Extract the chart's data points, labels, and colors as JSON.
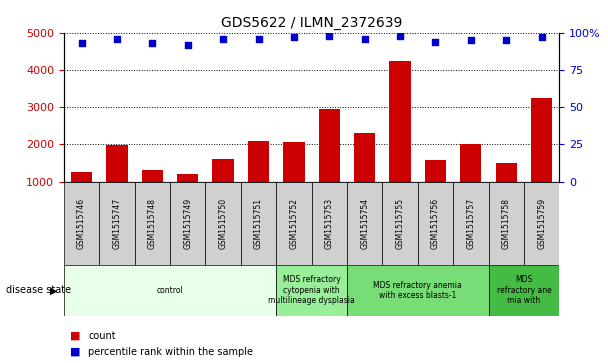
{
  "title": "GDS5622 / ILMN_2372639",
  "samples": [
    "GSM1515746",
    "GSM1515747",
    "GSM1515748",
    "GSM1515749",
    "GSM1515750",
    "GSM1515751",
    "GSM1515752",
    "GSM1515753",
    "GSM1515754",
    "GSM1515755",
    "GSM1515756",
    "GSM1515757",
    "GSM1515758",
    "GSM1515759"
  ],
  "counts": [
    1250,
    1980,
    1320,
    1190,
    1600,
    2100,
    2070,
    2950,
    2300,
    4250,
    1590,
    2020,
    1490,
    3250
  ],
  "percentiles": [
    93,
    96,
    93,
    92,
    96,
    96,
    97,
    98,
    96,
    98,
    94,
    95,
    95,
    97
  ],
  "disease_groups": [
    {
      "label": "control",
      "start": 0,
      "end": 6,
      "color": "#e8ffe8"
    },
    {
      "label": "MDS refractory\ncytopenia with\nmultilineage dysplasia",
      "start": 6,
      "end": 8,
      "color": "#99ee99"
    },
    {
      "label": "MDS refractory anemia\nwith excess blasts-1",
      "start": 8,
      "end": 12,
      "color": "#77dd77"
    },
    {
      "label": "MDS\nrefractory ane\nmia with",
      "start": 12,
      "end": 14,
      "color": "#44bb44"
    }
  ],
  "ylim_left": [
    1000,
    5000
  ],
  "ylim_right": [
    0,
    100
  ],
  "yticks_left": [
    1000,
    2000,
    3000,
    4000,
    5000
  ],
  "yticks_right": [
    0,
    25,
    50,
    75,
    100
  ],
  "bar_color": "#cc0000",
  "scatter_color": "#0000cc",
  "left_tick_color": "#cc0000",
  "right_tick_color": "#0000cc",
  "background_color": "#ffffff",
  "grid_color": "#000000",
  "label_box_color": "#d0d0d0"
}
